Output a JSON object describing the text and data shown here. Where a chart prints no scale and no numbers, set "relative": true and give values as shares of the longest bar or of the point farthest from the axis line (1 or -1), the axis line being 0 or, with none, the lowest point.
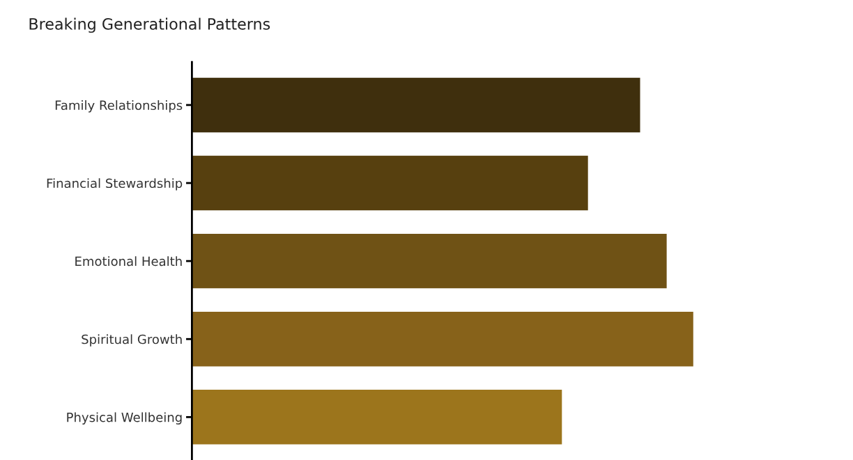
{
  "chart_data": {
    "type": "bar",
    "orientation": "horizontal",
    "relative": true,
    "title": "Breaking Generational Patterns",
    "categories": [
      "Family Relationships",
      "Financial Stewardship",
      "Emotional Health",
      "Spiritual Growth",
      "Physical Wellbeing"
    ],
    "values": [
      0.894,
      0.79,
      0.947,
      1.0,
      0.738
    ],
    "colors": [
      "#3f2f0d",
      "#57400f",
      "#6f5215",
      "#87621a",
      "#9c751c"
    ]
  }
}
